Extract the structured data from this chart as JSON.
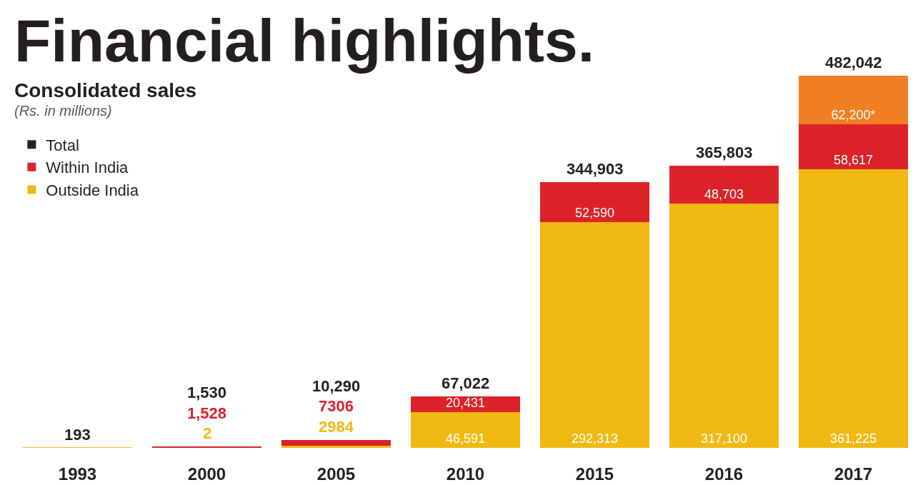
{
  "chart_data": {
    "type": "bar",
    "title": "Financial highlights.",
    "subtitle": "Consolidated sales",
    "annotations": [
      "(Rs. in millions)"
    ],
    "categories": [
      "1993",
      "2000",
      "2005",
      "2010",
      "2015",
      "2016",
      "2017"
    ],
    "stacked": true,
    "legend": "left",
    "totals": [
      "193",
      "1,530",
      "10,290",
      "67,022",
      "344,903",
      "365,803",
      "482,042"
    ],
    "series": [
      {
        "name": "Total",
        "color": "#231f20",
        "values": [
          null,
          null,
          null,
          null,
          null,
          null,
          null
        ]
      },
      {
        "name": "Outside India",
        "color": "#f0b912",
        "values": [
          193,
          2,
          2984,
          46591,
          292313,
          317100,
          361225
        ],
        "value_labels": [
          null,
          "2",
          "2984",
          "46,591",
          "292,313",
          "317,100",
          "361,225"
        ]
      },
      {
        "name": "Within India",
        "color": "#dc2229",
        "values": [
          null,
          1528,
          7306,
          20431,
          52590,
          48703,
          58617
        ],
        "value_labels": [
          null,
          "1,528",
          "7306",
          "20,431",
          "52,590",
          "48,703",
          "58,617"
        ]
      },
      {
        "color": "#f07f23",
        "values": [
          null,
          null,
          null,
          null,
          null,
          null,
          62200
        ],
        "value_labels": [
          null,
          null,
          null,
          null,
          null,
          null,
          "62,200*"
        ]
      }
    ]
  }
}
